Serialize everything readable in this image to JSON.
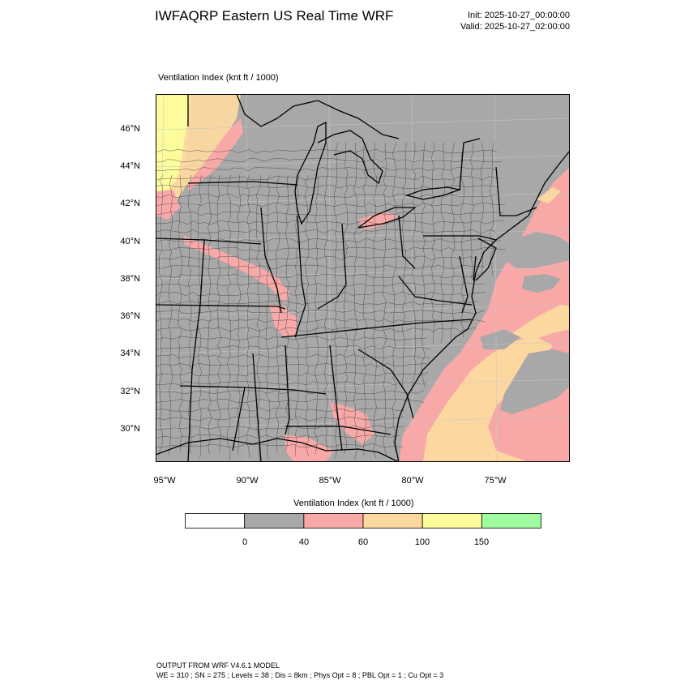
{
  "header": {
    "title": "IWFAQRP Eastern US Real Time WRF",
    "init": "Init: 2025-10-27_00:00:00",
    "valid": "Valid: 2025-10-27_02:00:00"
  },
  "field": {
    "label": "Ventilation Index   (knt ft / 1000)"
  },
  "map": {
    "lat_labels": [
      "46°N",
      "44°N",
      "42°N",
      "40°N",
      "38°N",
      "36°N",
      "34°N",
      "32°N",
      "30°N"
    ],
    "lon_labels": [
      "95°W",
      "90°W",
      "85°W",
      "80°W",
      "75°W"
    ],
    "fill_colors": {
      "land_low": "#a8a8a8",
      "water_low": "#a8a8a8",
      "pink": "#f9a8a8",
      "tan": "#fcd8a0",
      "yellow": "#fcfc9c",
      "green": "#a0fca0"
    }
  },
  "colorbar": {
    "title": "Ventilation Index  (knt ft / 1000)",
    "labels": [
      "0",
      "40",
      "60",
      "100",
      "150"
    ],
    "colors": [
      "#ffffff",
      "#a8a8a8",
      "#f9a8a8",
      "#fcd8a0",
      "#fcfc9c",
      "#a0fca0"
    ]
  },
  "footer": {
    "line1": "OUTPUT FROM WRF V4.6.1 MODEL",
    "line2": "WE = 310 ; SN = 275 ; Levels = 38 ; Dis = 8km ; Phys Opt = 8 ; PBL Opt = 1 ; Cu Opt = 3"
  }
}
